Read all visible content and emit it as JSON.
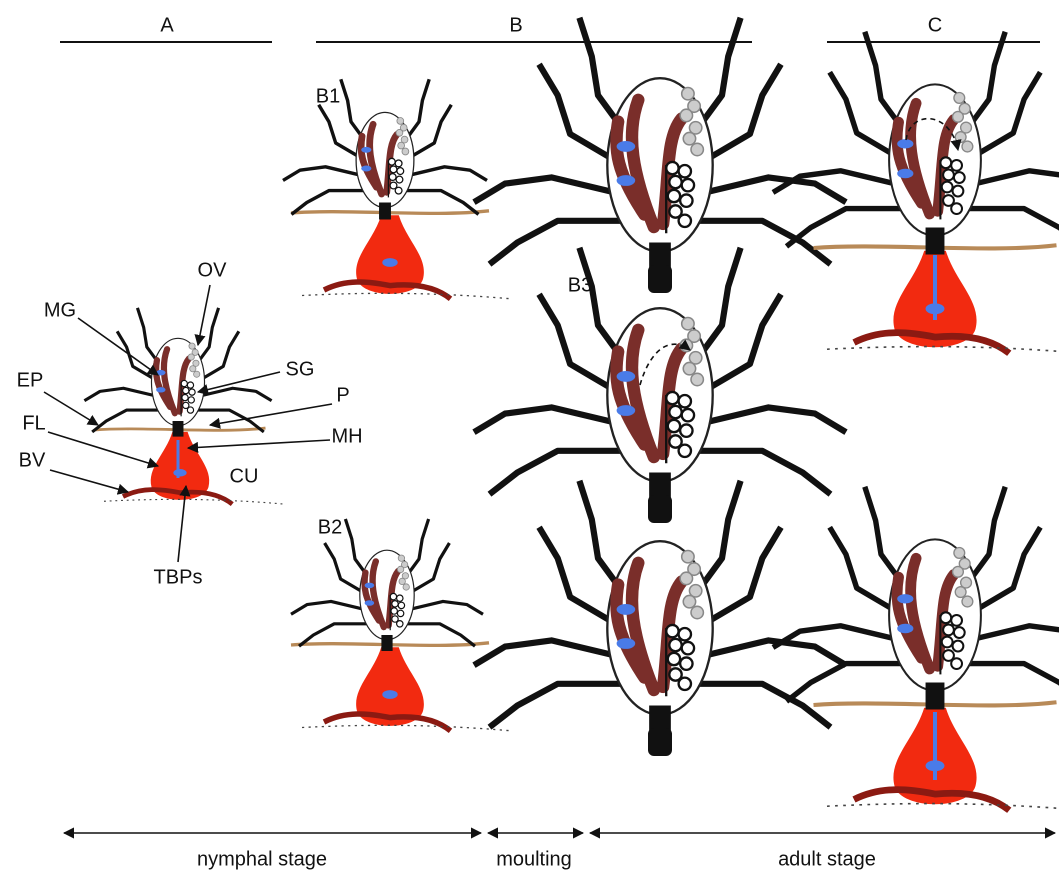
{
  "headers": [
    "A",
    "B",
    "C"
  ],
  "panels": [
    "B1",
    "B2",
    "B3"
  ],
  "labels": [
    "OV",
    "MG",
    "SG",
    "EP",
    "P",
    "FL",
    "MH",
    "BV",
    "CU",
    "TBPs"
  ],
  "stages": [
    "nymphal stage",
    "moulting",
    "adult stage"
  ]
}
